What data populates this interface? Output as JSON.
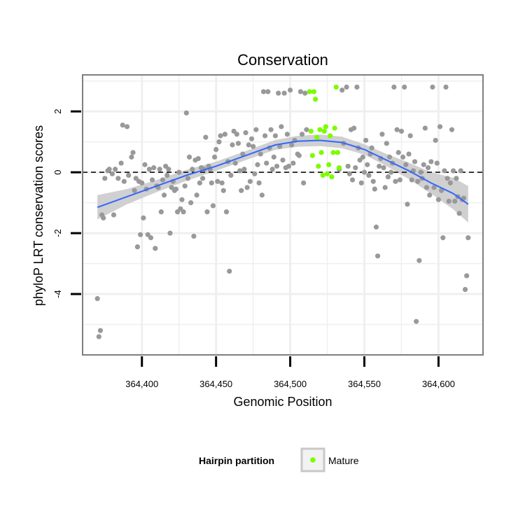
{
  "chart_data": {
    "type": "scatter",
    "title": "Conservation",
    "xlabel": "Genomic Position",
    "ylabel": "phyloP LRT conservation scores",
    "xlim": [
      364360,
      364630
    ],
    "ylim": [
      -6,
      3.2
    ],
    "x_ticks": [
      364400,
      364450,
      364500,
      364550,
      364600
    ],
    "x_tick_labels": [
      "364,400",
      "364,450",
      "364,500",
      "364,550",
      "364,600"
    ],
    "y_ticks": [
      -4,
      -2,
      0,
      2
    ],
    "y_tick_labels": [
      "-4",
      "-2",
      "0",
      "2"
    ],
    "reference_line": {
      "y": 0,
      "style": "dashed"
    },
    "grid": true,
    "colors": {
      "background_points": "#999999",
      "mature_points": "#7CFC00",
      "smooth_line": "#3366FF",
      "confidence_band": "#c8c8c8",
      "grid": "#efefef",
      "panel_border": "#7f7f7f"
    },
    "series": [
      {
        "name": "Background",
        "color": "#999999",
        "points": [
          [
            364370,
            -4.15
          ],
          [
            364371,
            -5.4
          ],
          [
            364372,
            -5.2
          ],
          [
            364373,
            -1.4
          ],
          [
            364374,
            -1.5
          ],
          [
            364375,
            -0.2
          ],
          [
            364377,
            0.05
          ],
          [
            364378,
            0.1
          ],
          [
            364380,
            -0.05
          ],
          [
            364381,
            -1.4
          ],
          [
            364382,
            0.1
          ],
          [
            364384,
            -0.2
          ],
          [
            364386,
            0.3
          ],
          [
            364387,
            1.55
          ],
          [
            364388,
            -0.3
          ],
          [
            364390,
            1.5
          ],
          [
            364391,
            -0.1
          ],
          [
            364393,
            0.5
          ],
          [
            364394,
            0.65
          ],
          [
            364395,
            -0.6
          ],
          [
            364396,
            -0.2
          ],
          [
            364397,
            -2.45
          ],
          [
            364398,
            -0.3
          ],
          [
            364399,
            -2.05
          ],
          [
            364400,
            -0.35
          ],
          [
            364401,
            -1.5
          ],
          [
            364402,
            0.25
          ],
          [
            364403,
            -0.55
          ],
          [
            364404,
            -2.05
          ],
          [
            364405,
            0.1
          ],
          [
            364406,
            -2.15
          ],
          [
            364407,
            -0.25
          ],
          [
            364408,
            0.15
          ],
          [
            364409,
            -2.5
          ],
          [
            364410,
            -0.45
          ],
          [
            364411,
            -0.5
          ],
          [
            364412,
            0.1
          ],
          [
            364413,
            -1.3
          ],
          [
            364414,
            -0.25
          ],
          [
            364415,
            -0.75
          ],
          [
            364416,
            0.2
          ],
          [
            364417,
            -0.1
          ],
          [
            364418,
            0.1
          ],
          [
            364419,
            -2.0
          ],
          [
            364420,
            -0.5
          ],
          [
            364421,
            -0.3
          ],
          [
            364422,
            -0.6
          ],
          [
            364423,
            -0.55
          ],
          [
            364424,
            -1.3
          ],
          [
            364425,
            0.0
          ],
          [
            364426,
            -1.2
          ],
          [
            364427,
            -0.9
          ],
          [
            364428,
            -1.3
          ],
          [
            364429,
            -0.45
          ],
          [
            364430,
            1.95
          ],
          [
            364431,
            -0.2
          ],
          [
            364432,
            0.5
          ],
          [
            364433,
            -1.0
          ],
          [
            364434,
            0.1
          ],
          [
            364435,
            -2.1
          ],
          [
            364436,
            0.4
          ],
          [
            364437,
            -0.75
          ],
          [
            364438,
            0.45
          ],
          [
            364439,
            -0.35
          ],
          [
            364440,
            0.15
          ],
          [
            364441,
            -0.2
          ],
          [
            364442,
            0.1
          ],
          [
            364443,
            1.15
          ],
          [
            364444,
            -1.3
          ],
          [
            364445,
            0.2
          ],
          [
            364446,
            0.1
          ],
          [
            364447,
            -0.35
          ],
          [
            364448,
            -1.1
          ],
          [
            364449,
            0.5
          ],
          [
            364450,
            0.75
          ],
          [
            364451,
            -0.3
          ],
          [
            364452,
            1.0
          ],
          [
            364453,
            1.2
          ],
          [
            364454,
            -0.35
          ],
          [
            364455,
            -0.6
          ],
          [
            364456,
            1.25
          ],
          [
            364457,
            -1.3
          ],
          [
            364458,
            0.35
          ],
          [
            364459,
            -3.25
          ],
          [
            364460,
            -0.1
          ],
          [
            364461,
            0.9
          ],
          [
            364462,
            1.35
          ],
          [
            364463,
            0.3
          ],
          [
            364464,
            1.25
          ],
          [
            364465,
            0.95
          ],
          [
            364466,
            0.05
          ],
          [
            364467,
            -0.6
          ],
          [
            364468,
            0.6
          ],
          [
            364469,
            0.1
          ],
          [
            364470,
            1.3
          ],
          [
            364471,
            -0.5
          ],
          [
            364472,
            0.9
          ],
          [
            364473,
            -0.3
          ],
          [
            364474,
            1.1
          ],
          [
            364475,
            0.85
          ],
          [
            364476,
            -0.05
          ],
          [
            364477,
            1.4
          ],
          [
            364478,
            0.25
          ],
          [
            364479,
            -0.35
          ],
          [
            364480,
            0.6
          ],
          [
            364481,
            -0.75
          ],
          [
            364482,
            2.65
          ],
          [
            364483,
            1.2
          ],
          [
            364484,
            0.3
          ],
          [
            364485,
            2.65
          ],
          [
            364486,
            0.8
          ],
          [
            364487,
            1.4
          ],
          [
            364488,
            0.1
          ],
          [
            364489,
            0.5
          ],
          [
            364490,
            1.2
          ],
          [
            364491,
            0.2
          ],
          [
            364492,
            2.6
          ],
          [
            364493,
            0.85
          ],
          [
            364494,
            1.5
          ],
          [
            364495,
            0.4
          ],
          [
            364496,
            2.6
          ],
          [
            364497,
            0.15
          ],
          [
            364498,
            1.25
          ],
          [
            364499,
            0.2
          ],
          [
            364500,
            2.7
          ],
          [
            364501,
            0.9
          ],
          [
            364502,
            0.3
          ],
          [
            364503,
            1.05
          ],
          [
            364505,
            0.6
          ],
          [
            364506,
            0.55
          ],
          [
            364507,
            2.65
          ],
          [
            364508,
            1.25
          ],
          [
            364509,
            -0.35
          ],
          [
            364510,
            2.6
          ],
          [
            364511,
            1.4
          ],
          [
            364533,
            0.1
          ],
          [
            364535,
            2.7
          ],
          [
            364536,
            0.95
          ],
          [
            364538,
            2.8
          ],
          [
            364539,
            0.2
          ],
          [
            364540,
            -0.05
          ],
          [
            364541,
            1.4
          ],
          [
            364542,
            -0.25
          ],
          [
            364543,
            1.45
          ],
          [
            364544,
            0.15
          ],
          [
            364545,
            2.8
          ],
          [
            364546,
            0.8
          ],
          [
            364547,
            0.4
          ],
          [
            364548,
            -0.35
          ],
          [
            364549,
            0.5
          ],
          [
            364550,
            0.0
          ],
          [
            364551,
            1.05
          ],
          [
            364552,
            0.25
          ],
          [
            364553,
            -0.1
          ],
          [
            364554,
            0.6
          ],
          [
            364555,
            0.8
          ],
          [
            364556,
            -0.3
          ],
          [
            364557,
            -0.55
          ],
          [
            364558,
            -1.8
          ],
          [
            364559,
            -2.75
          ],
          [
            364560,
            0.2
          ],
          [
            364561,
            0.45
          ],
          [
            364562,
            1.25
          ],
          [
            364563,
            0.15
          ],
          [
            364564,
            -0.5
          ],
          [
            364565,
            0.95
          ],
          [
            364566,
            -0.15
          ],
          [
            364567,
            0.5
          ],
          [
            364568,
            0.0
          ],
          [
            364569,
            0.3
          ],
          [
            364570,
            2.8
          ],
          [
            364571,
            -0.3
          ],
          [
            364572,
            1.4
          ],
          [
            364573,
            0.65
          ],
          [
            364574,
            -0.25
          ],
          [
            364575,
            1.35
          ],
          [
            364576,
            0.5
          ],
          [
            364577,
            2.8
          ],
          [
            364578,
            0.25
          ],
          [
            364579,
            -1.05
          ],
          [
            364580,
            0.6
          ],
          [
            364581,
            1.2
          ],
          [
            364582,
            -0.25
          ],
          [
            364583,
            0.05
          ],
          [
            364584,
            0.35
          ],
          [
            364585,
            -4.9
          ],
          [
            364586,
            -0.3
          ],
          [
            364587,
            -2.9
          ],
          [
            364588,
            0.0
          ],
          [
            364589,
            -0.2
          ],
          [
            364590,
            0.25
          ],
          [
            364591,
            1.45
          ],
          [
            364592,
            -0.5
          ],
          [
            364593,
            0.15
          ],
          [
            364594,
            -0.75
          ],
          [
            364595,
            0.35
          ],
          [
            364596,
            2.8
          ],
          [
            364597,
            -0.5
          ],
          [
            364598,
            1.05
          ],
          [
            364599,
            0.3
          ],
          [
            364600,
            -0.9
          ],
          [
            364601,
            1.5
          ],
          [
            364602,
            -0.6
          ],
          [
            364603,
            -2.15
          ],
          [
            364604,
            0.05
          ],
          [
            364605,
            2.8
          ],
          [
            364606,
            -0.2
          ],
          [
            364607,
            -0.95
          ],
          [
            364608,
            -0.35
          ],
          [
            364609,
            1.4
          ],
          [
            364610,
            0.05
          ],
          [
            364611,
            -0.95
          ],
          [
            364612,
            -0.2
          ],
          [
            364613,
            -0.8
          ],
          [
            364614,
            -1.35
          ],
          [
            364615,
            0.05
          ],
          [
            364616,
            -0.9
          ],
          [
            364617,
            -0.85
          ],
          [
            364618,
            -3.85
          ],
          [
            364619,
            -3.4
          ],
          [
            364620,
            -2.15
          ]
        ]
      },
      {
        "name": "Mature",
        "color": "#7CFC00",
        "points": [
          [
            364513,
            2.65
          ],
          [
            364514,
            1.35
          ],
          [
            364515,
            0.55
          ],
          [
            364516,
            2.65
          ],
          [
            364517,
            2.4
          ],
          [
            364518,
            1.15
          ],
          [
            364519,
            0.2
          ],
          [
            364520,
            1.4
          ],
          [
            364521,
            0.65
          ],
          [
            364522,
            -0.1
          ],
          [
            364523,
            1.35
          ],
          [
            364524,
            1.5
          ],
          [
            364525,
            -0.05
          ],
          [
            364526,
            0.25
          ],
          [
            364527,
            1.2
          ],
          [
            364528,
            -0.15
          ],
          [
            364529,
            0.65
          ],
          [
            364530,
            1.45
          ],
          [
            364531,
            2.8
          ],
          [
            364532,
            0.65
          ],
          [
            364533,
            0.15
          ]
        ]
      }
    ],
    "smooth": {
      "name": "loess fit",
      "x": [
        364370,
        364390,
        364410,
        364430,
        364450,
        364470,
        364490,
        364505,
        364520,
        364535,
        364550,
        364565,
        364580,
        364595,
        364610,
        364620
      ],
      "y": [
        -1.15,
        -0.8,
        -0.45,
        -0.1,
        0.2,
        0.55,
        0.9,
        1.02,
        1.05,
        0.98,
        0.75,
        0.4,
        0.05,
        -0.35,
        -0.7,
        -1.05
      ],
      "lower": [
        -1.55,
        -1.05,
        -0.65,
        -0.28,
        0.05,
        0.4,
        0.74,
        0.84,
        0.86,
        0.79,
        0.58,
        0.2,
        -0.22,
        -0.7,
        -1.22,
        -1.65
      ],
      "upper": [
        -0.75,
        -0.55,
        -0.25,
        0.08,
        0.35,
        0.7,
        1.06,
        1.2,
        1.24,
        1.17,
        0.92,
        0.6,
        0.32,
        0.0,
        -0.18,
        -0.45
      ]
    }
  },
  "legend": {
    "title": "Hairpin partition",
    "label": "Mature",
    "color": "#7CFC00"
  }
}
